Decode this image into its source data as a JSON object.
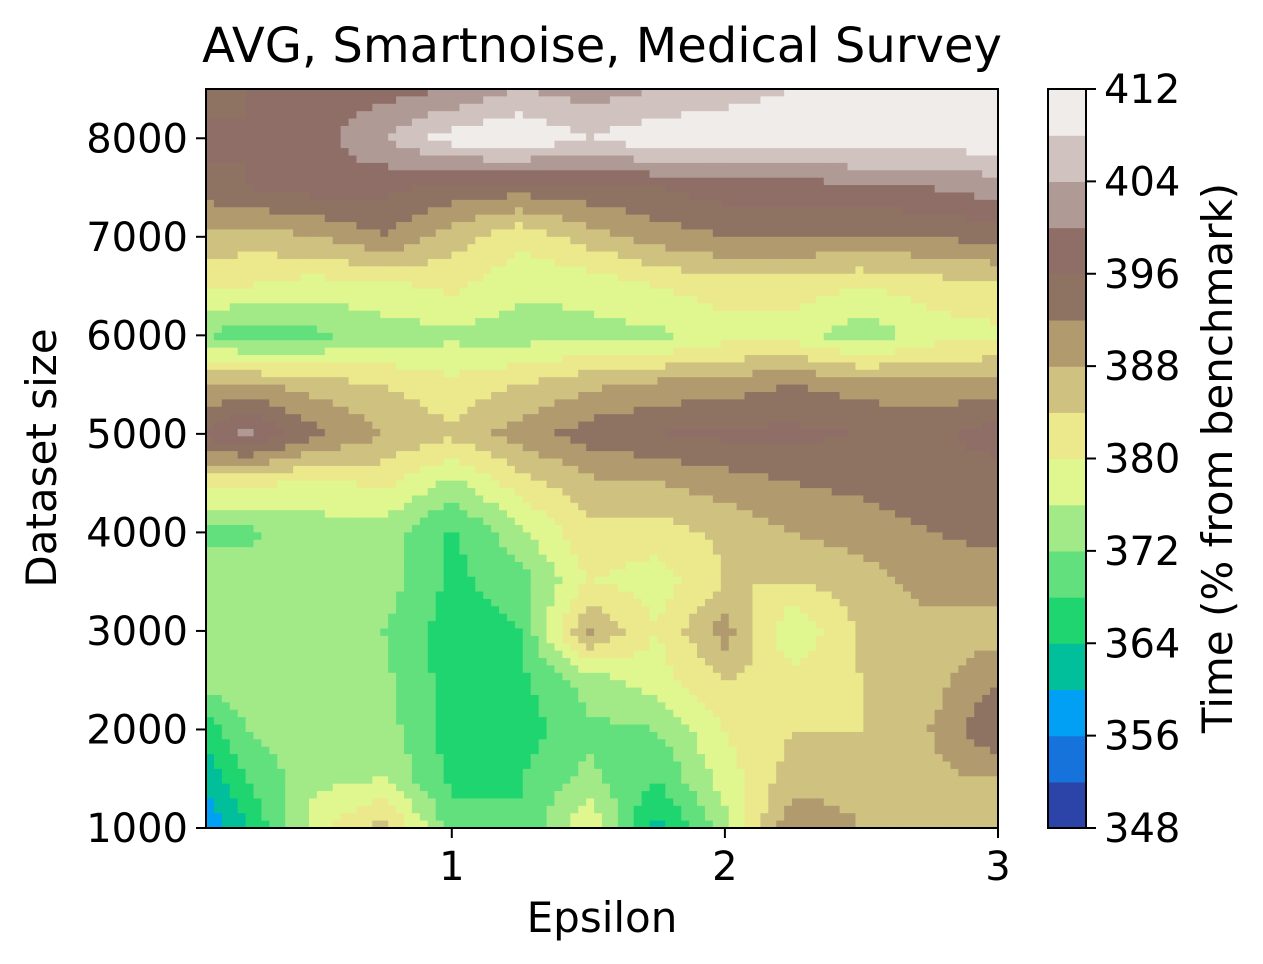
{
  "chart_data": {
    "type": "heatmap",
    "subtype": "filled-contour",
    "title": "AVG, Smartnoise, Medical Survey",
    "xlabel": "Epsilon",
    "ylabel": "Dataset size",
    "colorbar_label": "Time (% from benchmark)",
    "xlim": [
      0.1,
      3.0
    ],
    "ylim": [
      1000,
      8500
    ],
    "x_ticks": [
      1,
      2,
      3
    ],
    "y_ticks": [
      1000,
      2000,
      3000,
      4000,
      5000,
      6000,
      7000,
      8000
    ],
    "colorbar_ticks": [
      348,
      356,
      364,
      372,
      380,
      388,
      396,
      404,
      412
    ],
    "contour_levels": [
      348,
      352,
      356,
      360,
      364,
      368,
      372,
      376,
      380,
      384,
      388,
      392,
      396,
      400,
      404,
      408,
      412
    ],
    "colormap": "terrain",
    "level_colors": [
      "#2c44a8",
      "#1773dc",
      "#01a0f4",
      "#00bf9a",
      "#1fd56f",
      "#62e07d",
      "#a2ea88",
      "#e0f68f",
      "#ece98c",
      "#cfc17f",
      "#b09a6e",
      "#8f7362",
      "#8f6e67",
      "#b09a95",
      "#d0c2be",
      "#f0ecea"
    ],
    "x": [
      0.1,
      0.25,
      0.5,
      0.75,
      1.0,
      1.25,
      1.5,
      1.75,
      2.0,
      2.25,
      2.5,
      2.75,
      3.0
    ],
    "y": [
      1000,
      1500,
      2000,
      2500,
      3000,
      3500,
      4000,
      4500,
      5000,
      5500,
      6000,
      6500,
      7000,
      7500,
      8000,
      8500
    ],
    "z": [
      [
        357,
        364,
        378,
        386,
        370,
        368,
        380,
        362,
        374,
        392,
        388,
        388,
        388
      ],
      [
        361,
        368,
        375,
        376,
        367,
        368,
        373,
        368,
        378,
        386,
        386,
        387,
        388
      ],
      [
        366,
        372,
        376,
        374,
        366,
        366,
        371,
        372,
        380,
        384,
        384,
        388,
        396
      ],
      [
        374,
        375,
        376,
        373,
        366,
        367,
        374,
        378,
        384,
        382,
        384,
        386,
        392
      ],
      [
        375,
        376,
        376,
        372,
        366,
        368,
        389,
        380,
        390,
        376,
        385,
        386,
        386
      ],
      [
        374,
        375,
        375,
        374,
        367,
        370,
        380,
        378,
        384,
        384,
        386,
        390,
        390
      ],
      [
        371,
        371,
        374,
        374,
        367,
        375,
        383,
        382,
        385,
        388,
        390,
        392,
        393
      ],
      [
        382,
        381,
        379,
        381,
        375,
        382,
        387,
        388,
        390,
        392,
        393,
        394,
        394
      ],
      [
        397,
        401,
        393,
        388,
        385,
        390,
        394,
        396,
        397,
        397,
        396,
        395,
        398
      ],
      [
        388,
        389,
        386,
        384,
        381,
        384,
        387,
        389,
        390,
        392,
        390,
        389,
        390
      ],
      [
        372,
        369,
        371,
        374,
        375,
        374,
        375,
        375,
        378,
        378,
        373,
        378,
        379
      ],
      [
        381,
        380,
        378,
        379,
        381,
        377,
        377,
        380,
        382,
        382,
        380,
        382,
        383
      ],
      [
        387,
        386,
        388,
        392,
        386,
        381,
        386,
        390,
        392,
        392,
        392,
        392,
        394
      ],
      [
        394,
        396,
        398,
        397,
        395,
        394,
        395,
        396,
        398,
        398,
        399,
        400,
        402
      ],
      [
        398,
        396,
        398,
        404,
        410,
        412,
        408,
        411,
        411,
        411,
        411,
        410,
        411
      ],
      [
        392,
        396,
        398,
        398,
        400,
        404,
        402,
        404,
        406,
        408,
        408,
        408,
        408
      ]
    ]
  }
}
